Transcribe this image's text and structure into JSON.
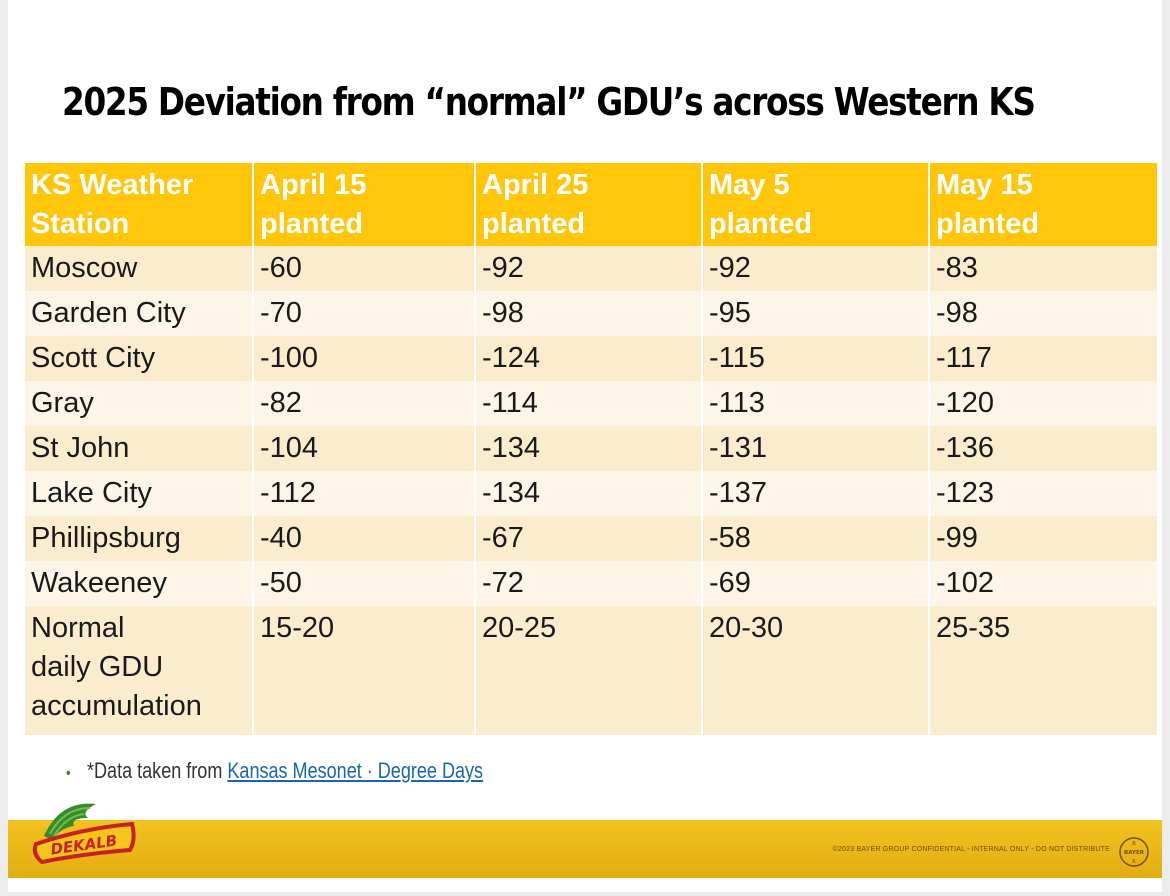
{
  "title": "2025 Deviation from “normal” GDU’s across Western KS",
  "table": {
    "headers": [
      [
        "KS Weather",
        "Station"
      ],
      [
        "April 15",
        "planted"
      ],
      [
        "April 25",
        "planted"
      ],
      [
        "May 5",
        "planted"
      ],
      [
        "May 15",
        "planted"
      ]
    ],
    "rows": [
      [
        "Moscow",
        "-60",
        "-92",
        "-92",
        "-83"
      ],
      [
        "Garden City",
        "-70",
        "-98",
        "-95",
        "-98"
      ],
      [
        "Scott City",
        "-100",
        "-124",
        "-115",
        "-117"
      ],
      [
        "Gray",
        "-82",
        "-114",
        "-113",
        "-120"
      ],
      [
        "St John",
        "-104",
        "-134",
        "-131",
        "-136"
      ],
      [
        "Lake City",
        "-112",
        "-134",
        "-137",
        "-123"
      ],
      [
        "Phillipsburg",
        "-40",
        "-67",
        "-58",
        "-99"
      ],
      [
        "Wakeeney",
        "-50",
        "-72",
        "-69",
        "-102"
      ]
    ],
    "normal_row": {
      "label": [
        "Normal",
        "daily GDU",
        "accumulation"
      ],
      "values": [
        "15-20",
        "20-25",
        "20-30",
        "25-35"
      ]
    }
  },
  "note": {
    "bullet": "•",
    "prefix": "*Data taken from ",
    "link_text": "Kansas Mesonet · Degree Days"
  },
  "footer": {
    "logo_text": "DEKALB",
    "confidential": "©2023 BAYER GROUP CONFIDENTIAL - INTERNAL ONLY - DO NOT DISTRIBUTE",
    "bayer_top": "B",
    "bayer_mid": "BAYER",
    "bayer_bottom": "R"
  },
  "colors": {
    "header_bg": "#ffc60a",
    "row_odd": "#fcecce",
    "row_even": "#fdf6e8",
    "footer_band": "#f2c21e",
    "dekalb_red": "#c8202a",
    "dekalb_green": "#3a8a2a"
  },
  "icons": [
    "dekalb-winged-ear-logo",
    "bayer-cross-logo"
  ]
}
